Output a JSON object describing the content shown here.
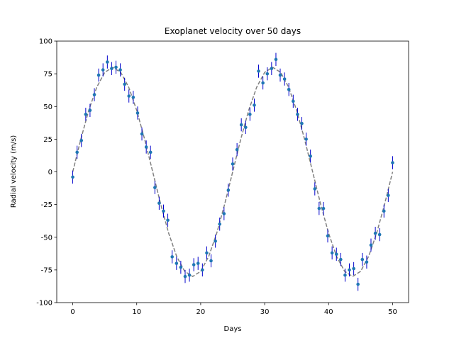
{
  "chart_data": {
    "type": "errorbar",
    "title": "Exoplanet velocity over 50 days",
    "xlabel": "Days",
    "ylabel": "Radial velocity (m/s)",
    "xlim": [
      -2.5,
      52.5
    ],
    "ylim": [
      -100,
      100
    ],
    "xticks": [
      0,
      10,
      20,
      30,
      40,
      50
    ],
    "yticks": [
      -100,
      -75,
      -50,
      -25,
      0,
      25,
      50,
      75,
      100
    ],
    "x": [
      0,
      0.68,
      1.35,
      2.03,
      2.7,
      3.38,
      4.05,
      4.73,
      5.41,
      6.08,
      6.76,
      7.43,
      8.11,
      8.78,
      9.46,
      10.14,
      10.81,
      11.49,
      12.16,
      12.84,
      13.51,
      14.19,
      14.86,
      15.54,
      16.22,
      16.89,
      17.57,
      18.24,
      18.92,
      19.59,
      20.27,
      20.95,
      21.62,
      22.3,
      22.97,
      23.65,
      24.32,
      25,
      25.68,
      26.35,
      27.03,
      27.7,
      28.38,
      29.05,
      29.73,
      30.41,
      31.08,
      31.76,
      32.43,
      33.11,
      33.78,
      34.46,
      35.14,
      35.81,
      36.49,
      37.16,
      37.84,
      38.51,
      39.19,
      39.86,
      40.54,
      41.22,
      41.89,
      42.57,
      43.24,
      43.92,
      44.59,
      45.27,
      45.95,
      46.62,
      47.3,
      47.97,
      48.65,
      49.32,
      50
    ],
    "values": [
      -4,
      15,
      24,
      44,
      47,
      59,
      74,
      78,
      84,
      79,
      80,
      78,
      67,
      58,
      57,
      45,
      29,
      19,
      15,
      -12,
      -24,
      -30,
      -37,
      -65,
      -70,
      -73,
      -80,
      -79,
      -71,
      -70,
      -75,
      -62,
      -68,
      -53,
      -40,
      -32,
      -14,
      6,
      17,
      36,
      34,
      44,
      51,
      77,
      68,
      75,
      79,
      86,
      74,
      71,
      63,
      54,
      44,
      37,
      25,
      12,
      -13,
      -28,
      -28,
      -49,
      -62,
      -63,
      -67,
      -79,
      -75,
      -74,
      -86,
      -67,
      -69,
      -56,
      -47,
      -48,
      -30,
      -18,
      7
    ],
    "yerr": 5,
    "color": "#1f77b4",
    "ecolor": "#0000cc",
    "model": {
      "color": "#808080",
      "x": [
        0,
        1.25,
        2.5,
        3.75,
        5,
        6.25,
        7.5,
        8.75,
        10,
        11.25,
        12.5,
        13.75,
        15,
        16.25,
        17.5,
        18.75,
        20,
        21.25,
        22.5,
        23.75,
        25,
        26.25,
        27.5,
        28.75,
        30,
        31.25,
        32.5,
        33.75,
        35,
        36.25,
        37.5,
        38.75,
        40,
        41.25,
        42.5,
        43.75,
        45,
        46.25,
        47.5,
        48.75,
        50
      ],
      "values": [
        0,
        24.72,
        47.02,
        64.72,
        76.08,
        80,
        76.08,
        64.72,
        47.02,
        24.72,
        0,
        -24.72,
        -47.02,
        -64.72,
        -76.08,
        -80,
        -76.08,
        -64.72,
        -47.02,
        -24.72,
        0,
        24.72,
        47.02,
        64.72,
        76.08,
        80,
        76.08,
        64.72,
        47.02,
        24.72,
        0,
        -24.72,
        -47.02,
        -64.72,
        -76.08,
        -80,
        -76.08,
        -64.72,
        -47.02,
        -24.72,
        0
      ]
    }
  }
}
